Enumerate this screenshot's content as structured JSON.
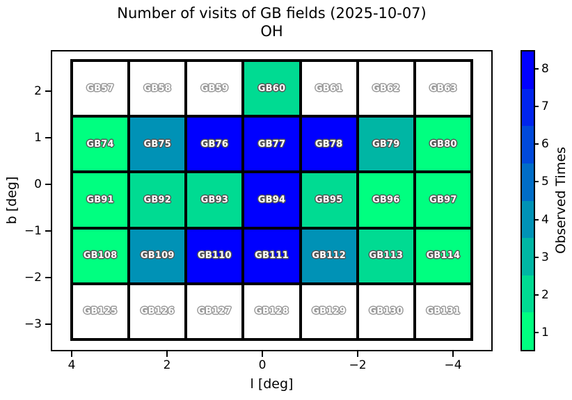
{
  "title": "Number of visits of GB fields (2025-10-07)",
  "subtitle": "OH",
  "xlabel": "l [deg]",
  "ylabel": "b [deg]",
  "x_tick_labels": [
    "4",
    "2",
    "0",
    "−2",
    "−4"
  ],
  "y_tick_labels": [
    "2",
    "1",
    "0",
    "−1",
    "−2",
    "−3"
  ],
  "colorbar": {
    "label": "Observed Times",
    "tick_labels": [
      "1",
      "2",
      "3",
      "4",
      "5",
      "6",
      "7",
      "8"
    ],
    "segment_colors_top_to_bottom": [
      "#0000FF",
      "#0024ED",
      "#0049DB",
      "#006DC8",
      "#0092B6",
      "#00B6A4",
      "#00DB92",
      "#00FF80"
    ]
  },
  "colors": {
    "background": "#ffffff",
    "cell_border": "#000000",
    "empty_cell": "#ffffff",
    "levels": {
      "1": "#00FF80",
      "2": "#00DB92",
      "3": "#00B6A4",
      "4": "#0092B6",
      "5": "#006DC8",
      "6": "#0049DB",
      "7": "#0024ED",
      "8": "#0000FF"
    }
  },
  "chart_data": {
    "type": "heatmap",
    "title": "Number of visits of GB fields (2025-10-07)",
    "subtitle": "OH",
    "xlabel": "l [deg]",
    "ylabel": "b [deg]",
    "x_ticks": [
      4,
      2,
      0,
      -2,
      -4
    ],
    "y_ticks": [
      2,
      1,
      0,
      -1,
      -2,
      -3
    ],
    "x_axis_reversed": true,
    "grid_shape": {
      "rows": 5,
      "cols": 7
    },
    "colorbar_label": "Observed Times",
    "colorbar_range": [
      1,
      8
    ],
    "colormap": "discrete 8-level green-to-blue (winter reversed); white = no visits",
    "cells": [
      {
        "field": "GB57",
        "visits": null
      },
      {
        "field": "GB58",
        "visits": null
      },
      {
        "field": "GB59",
        "visits": null
      },
      {
        "field": "GB60",
        "visits": 2
      },
      {
        "field": "GB61",
        "visits": null
      },
      {
        "field": "GB62",
        "visits": null
      },
      {
        "field": "GB63",
        "visits": null
      },
      {
        "field": "GB74",
        "visits": 1
      },
      {
        "field": "GB75",
        "visits": 4
      },
      {
        "field": "GB76",
        "visits": 8
      },
      {
        "field": "GB77",
        "visits": 8
      },
      {
        "field": "GB78",
        "visits": 8
      },
      {
        "field": "GB79",
        "visits": 3
      },
      {
        "field": "GB80",
        "visits": 1
      },
      {
        "field": "GB91",
        "visits": 1
      },
      {
        "field": "GB92",
        "visits": 2
      },
      {
        "field": "GB93",
        "visits": 2
      },
      {
        "field": "GB94",
        "visits": 8
      },
      {
        "field": "GB95",
        "visits": 2
      },
      {
        "field": "GB96",
        "visits": 1
      },
      {
        "field": "GB97",
        "visits": 1
      },
      {
        "field": "GB108",
        "visits": 1
      },
      {
        "field": "GB109",
        "visits": 4
      },
      {
        "field": "GB110",
        "visits": 8
      },
      {
        "field": "GB111",
        "visits": 8
      },
      {
        "field": "GB112",
        "visits": 4
      },
      {
        "field": "GB113",
        "visits": 2
      },
      {
        "field": "GB114",
        "visits": 1
      },
      {
        "field": "GB125",
        "visits": null
      },
      {
        "field": "GB126",
        "visits": null
      },
      {
        "field": "GB127",
        "visits": null
      },
      {
        "field": "GB128",
        "visits": null
      },
      {
        "field": "GB129",
        "visits": null
      },
      {
        "field": "GB130",
        "visits": null
      },
      {
        "field": "GB131",
        "visits": null
      }
    ]
  }
}
